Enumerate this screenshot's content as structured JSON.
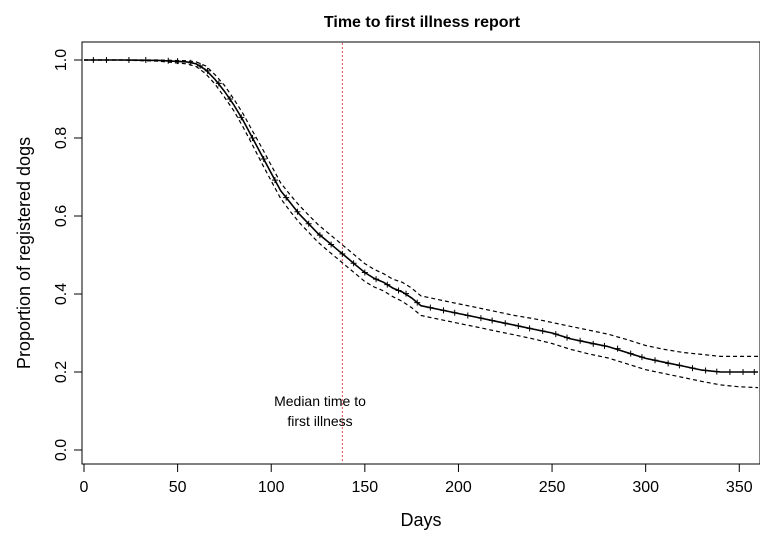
{
  "chart_data": {
    "type": "line",
    "title": "Time to first illness report",
    "xlabel": "Days",
    "ylabel": "Proportion of registered dogs",
    "xlim": [
      0,
      360
    ],
    "ylim": [
      0,
      1
    ],
    "x_ticks": [
      0,
      50,
      100,
      150,
      200,
      250,
      300,
      350
    ],
    "y_ticks": [
      "0.0",
      "0.2",
      "0.4",
      "0.6",
      "0.8",
      "1.0"
    ],
    "grid": false,
    "legend": "none",
    "median_line": {
      "x": 138,
      "color": "#e05050"
    },
    "annotation": {
      "line1": "Median time to",
      "line2": "first illness"
    },
    "series": [
      {
        "style": "solid",
        "x": [
          0,
          20,
          40,
          55,
          60,
          65,
          70,
          75,
          80,
          85,
          90,
          95,
          100,
          105,
          110,
          115,
          120,
          125,
          130,
          135,
          140,
          145,
          150,
          155,
          160,
          165,
          170,
          175,
          180,
          190,
          200,
          210,
          220,
          230,
          240,
          250,
          260,
          270,
          280,
          290,
          300,
          310,
          320,
          330,
          340,
          350,
          360
        ],
        "y": [
          1.0,
          1.0,
          0.999,
          0.995,
          0.99,
          0.975,
          0.95,
          0.92,
          0.885,
          0.845,
          0.8,
          0.755,
          0.71,
          0.665,
          0.635,
          0.605,
          0.58,
          0.555,
          0.535,
          0.515,
          0.495,
          0.475,
          0.455,
          0.44,
          0.43,
          0.415,
          0.405,
          0.39,
          0.37,
          0.36,
          0.35,
          0.34,
          0.33,
          0.32,
          0.31,
          0.3,
          0.285,
          0.275,
          0.265,
          0.25,
          0.235,
          0.225,
          0.215,
          0.205,
          0.2,
          0.2,
          0.2
        ]
      },
      {
        "style": "dashed",
        "x": [
          0,
          20,
          40,
          55,
          60,
          65,
          70,
          75,
          80,
          85,
          90,
          95,
          100,
          105,
          110,
          115,
          120,
          125,
          130,
          135,
          140,
          145,
          150,
          155,
          160,
          165,
          170,
          175,
          180,
          190,
          200,
          210,
          220,
          230,
          240,
          250,
          260,
          270,
          280,
          290,
          300,
          310,
          320,
          330,
          340,
          350,
          360
        ],
        "y": [
          1.0,
          1.0,
          1.0,
          0.998,
          0.995,
          0.985,
          0.962,
          0.935,
          0.9,
          0.862,
          0.818,
          0.775,
          0.73,
          0.685,
          0.655,
          0.627,
          0.602,
          0.578,
          0.558,
          0.538,
          0.518,
          0.498,
          0.478,
          0.463,
          0.452,
          0.438,
          0.43,
          0.415,
          0.395,
          0.385,
          0.375,
          0.365,
          0.355,
          0.345,
          0.337,
          0.327,
          0.317,
          0.307,
          0.297,
          0.283,
          0.268,
          0.258,
          0.25,
          0.245,
          0.24,
          0.24,
          0.24
        ]
      },
      {
        "style": "dashed",
        "x": [
          0,
          20,
          40,
          55,
          60,
          65,
          70,
          75,
          80,
          85,
          90,
          95,
          100,
          105,
          110,
          115,
          120,
          125,
          130,
          135,
          140,
          145,
          150,
          155,
          160,
          165,
          170,
          175,
          180,
          190,
          200,
          210,
          220,
          230,
          240,
          250,
          260,
          270,
          280,
          290,
          300,
          310,
          320,
          330,
          340,
          350,
          360
        ],
        "y": [
          1.0,
          1.0,
          0.997,
          0.99,
          0.983,
          0.965,
          0.938,
          0.905,
          0.87,
          0.828,
          0.782,
          0.735,
          0.69,
          0.645,
          0.613,
          0.583,
          0.558,
          0.533,
          0.512,
          0.492,
          0.472,
          0.452,
          0.432,
          0.418,
          0.408,
          0.393,
          0.381,
          0.365,
          0.345,
          0.335,
          0.325,
          0.315,
          0.305,
          0.295,
          0.285,
          0.273,
          0.258,
          0.246,
          0.236,
          0.221,
          0.206,
          0.196,
          0.186,
          0.176,
          0.167,
          0.162,
          0.16
        ]
      }
    ],
    "censor_marks": [
      {
        "x": 5,
        "y": 1.0
      },
      {
        "x": 12,
        "y": 1.0
      },
      {
        "x": 24,
        "y": 1.0
      },
      {
        "x": 33,
        "y": 1.0
      },
      {
        "x": 45,
        "y": 0.998
      },
      {
        "x": 50,
        "y": 0.997
      },
      {
        "x": 57,
        "y": 0.993
      },
      {
        "x": 62,
        "y": 0.985
      },
      {
        "x": 66,
        "y": 0.972
      },
      {
        "x": 72,
        "y": 0.94
      },
      {
        "x": 78,
        "y": 0.9
      },
      {
        "x": 84,
        "y": 0.853
      },
      {
        "x": 90,
        "y": 0.8
      },
      {
        "x": 96,
        "y": 0.746
      },
      {
        "x": 102,
        "y": 0.692
      },
      {
        "x": 108,
        "y": 0.647
      },
      {
        "x": 114,
        "y": 0.611
      },
      {
        "x": 120,
        "y": 0.58
      },
      {
        "x": 126,
        "y": 0.551
      },
      {
        "x": 132,
        "y": 0.527
      },
      {
        "x": 138,
        "y": 0.503
      },
      {
        "x": 144,
        "y": 0.479
      },
      {
        "x": 150,
        "y": 0.455
      },
      {
        "x": 156,
        "y": 0.438
      },
      {
        "x": 162,
        "y": 0.424
      },
      {
        "x": 168,
        "y": 0.409
      },
      {
        "x": 172,
        "y": 0.401
      },
      {
        "x": 178,
        "y": 0.378
      },
      {
        "x": 185,
        "y": 0.365
      },
      {
        "x": 192,
        "y": 0.358
      },
      {
        "x": 198,
        "y": 0.352
      },
      {
        "x": 205,
        "y": 0.345
      },
      {
        "x": 212,
        "y": 0.338
      },
      {
        "x": 218,
        "y": 0.332
      },
      {
        "x": 225,
        "y": 0.325
      },
      {
        "x": 232,
        "y": 0.318
      },
      {
        "x": 238,
        "y": 0.312
      },
      {
        "x": 245,
        "y": 0.305
      },
      {
        "x": 252,
        "y": 0.297
      },
      {
        "x": 258,
        "y": 0.288
      },
      {
        "x": 265,
        "y": 0.28
      },
      {
        "x": 272,
        "y": 0.272
      },
      {
        "x": 278,
        "y": 0.267
      },
      {
        "x": 285,
        "y": 0.26
      },
      {
        "x": 292,
        "y": 0.247
      },
      {
        "x": 298,
        "y": 0.238
      },
      {
        "x": 305,
        "y": 0.23
      },
      {
        "x": 312,
        "y": 0.222
      },
      {
        "x": 318,
        "y": 0.217
      },
      {
        "x": 325,
        "y": 0.21
      },
      {
        "x": 332,
        "y": 0.204
      },
      {
        "x": 338,
        "y": 0.201
      },
      {
        "x": 345,
        "y": 0.2
      },
      {
        "x": 352,
        "y": 0.2
      },
      {
        "x": 358,
        "y": 0.2
      }
    ]
  }
}
